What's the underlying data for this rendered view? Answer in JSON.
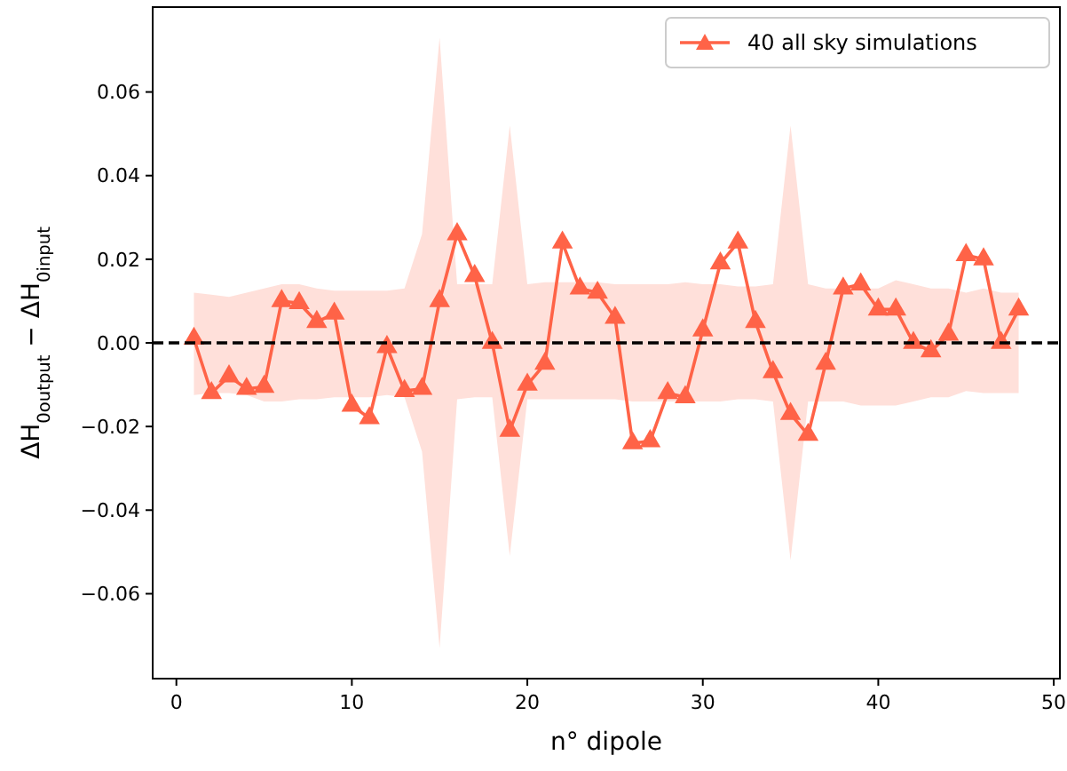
{
  "chart_data": {
    "type": "line",
    "xlabel": "n° dipole",
    "ylabel": "ΔH$_{0output}$ − ΔH$_{0input}$",
    "x": [
      1,
      2,
      3,
      4,
      5,
      6,
      7,
      8,
      9,
      10,
      11,
      12,
      13,
      14,
      15,
      16,
      17,
      18,
      19,
      20,
      21,
      22,
      23,
      24,
      25,
      26,
      27,
      28,
      29,
      30,
      31,
      32,
      33,
      34,
      35,
      36,
      37,
      38,
      39,
      40,
      41,
      42,
      43,
      44,
      45,
      46,
      47,
      48
    ],
    "series": [
      {
        "name": "40 all sky simulations",
        "color": "#ff6347",
        "marker": "triangle",
        "line_style": "solid",
        "values": [
          0.001,
          -0.012,
          -0.008,
          -0.011,
          -0.0105,
          0.01,
          0.0095,
          0.005,
          0.007,
          -0.015,
          -0.018,
          -0.001,
          -0.0115,
          -0.011,
          0.01,
          0.026,
          0.016,
          0.0,
          -0.021,
          -0.01,
          -0.005,
          0.024,
          0.013,
          0.012,
          0.006,
          -0.024,
          -0.0235,
          -0.012,
          -0.013,
          0.003,
          0.019,
          0.024,
          0.005,
          -0.007,
          -0.017,
          -0.022,
          -0.005,
          0.013,
          0.014,
          0.008,
          0.008,
          0.0,
          -0.002,
          0.002,
          0.021,
          0.02,
          0.0,
          0.008
        ],
        "upper": [
          0.012,
          0.0115,
          0.011,
          0.012,
          0.013,
          0.014,
          0.014,
          0.013,
          0.0125,
          0.0125,
          0.0125,
          0.0125,
          0.013,
          0.026,
          0.073,
          0.014,
          0.014,
          0.014,
          0.052,
          0.014,
          0.0145,
          0.0145,
          0.0145,
          0.0145,
          0.014,
          0.014,
          0.014,
          0.014,
          0.0145,
          0.014,
          0.014,
          0.0135,
          0.0135,
          0.014,
          0.052,
          0.014,
          0.013,
          0.013,
          0.013,
          0.013,
          0.015,
          0.014,
          0.013,
          0.013,
          0.012,
          0.013,
          0.012,
          0.012
        ],
        "lower": [
          -0.0125,
          -0.012,
          -0.012,
          -0.0125,
          -0.014,
          -0.014,
          -0.0135,
          -0.0135,
          -0.013,
          -0.013,
          -0.013,
          -0.0125,
          -0.013,
          -0.026,
          -0.073,
          -0.0135,
          -0.013,
          -0.013,
          -0.051,
          -0.0135,
          -0.0135,
          -0.0135,
          -0.0135,
          -0.0135,
          -0.0135,
          -0.014,
          -0.014,
          -0.014,
          -0.014,
          -0.014,
          -0.014,
          -0.0135,
          -0.0135,
          -0.014,
          -0.052,
          -0.014,
          -0.014,
          -0.014,
          -0.015,
          -0.015,
          -0.015,
          -0.014,
          -0.013,
          -0.013,
          -0.0115,
          -0.012,
          -0.012,
          -0.012
        ]
      }
    ],
    "ref_lines": [
      {
        "axis": "y",
        "value": 0,
        "color": "#000000",
        "line_style": "dashed"
      }
    ],
    "xlim": [
      -1.35,
      50.35
    ],
    "ylim": [
      -0.0803,
      0.0803
    ],
    "xticks": [
      0,
      10,
      20,
      30,
      40,
      50
    ],
    "yticks": [
      {
        "value": -0.06,
        "label": "−0.06"
      },
      {
        "value": -0.04,
        "label": "−0.04"
      },
      {
        "value": -0.02,
        "label": "−0.02"
      },
      {
        "value": 0,
        "label": "0.00"
      },
      0.02,
      0.04,
      0.06
    ],
    "legend": "top right",
    "grid": false
  }
}
